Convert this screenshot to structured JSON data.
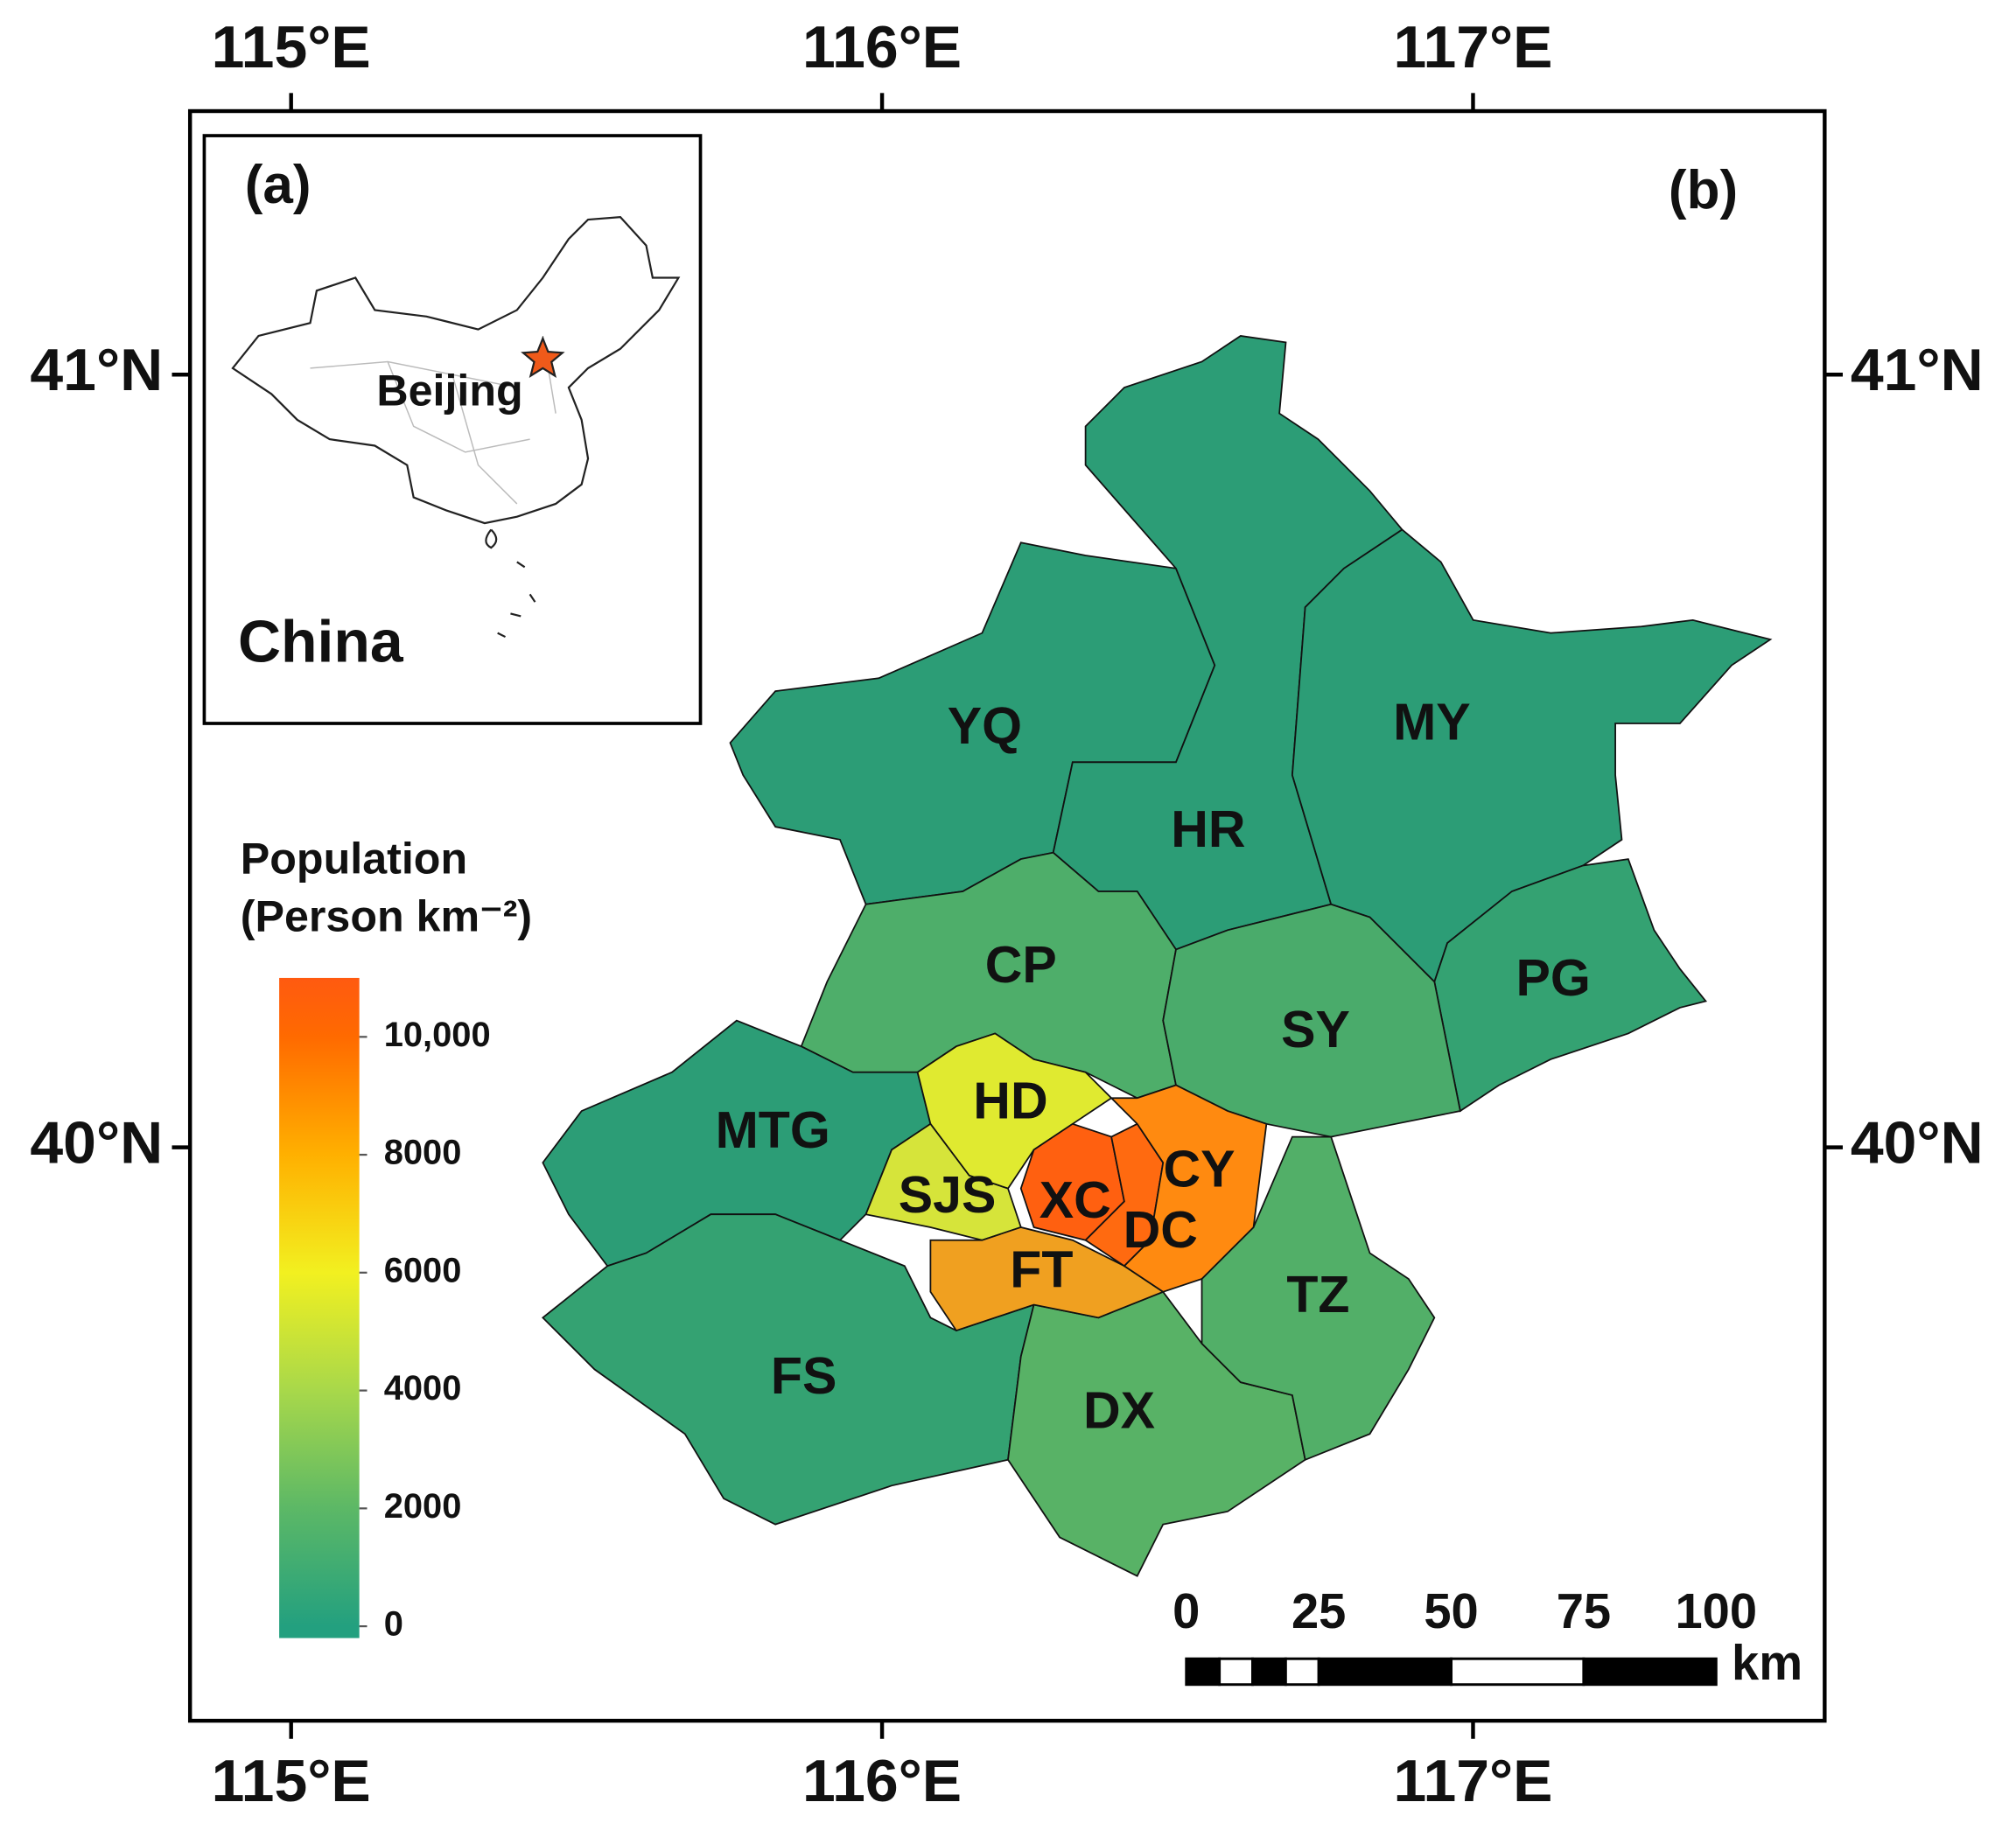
{
  "map": {
    "xlim": [
      114.829,
      117.595
    ],
    "ylim": [
      39.258,
      41.341
    ],
    "xticks": [
      {
        "value": 115,
        "label": "115°E"
      },
      {
        "value": 116,
        "label": "116°E"
      },
      {
        "value": 117,
        "label": "117°E"
      }
    ],
    "yticks": [
      {
        "value": 40,
        "label": "40°N"
      },
      {
        "value": 41,
        "label": "41°N"
      }
    ],
    "panel_b_label": "(b)",
    "inset": {
      "panel_label": "(a)",
      "country": "China",
      "city": "Beijing",
      "star_color": "#f05a1a"
    },
    "legend": {
      "title": "Population",
      "unit": "(Person km⁻²)",
      "lim": [
        -200,
        11000
      ],
      "ticks": [
        0,
        2000,
        4000,
        6000,
        8000,
        {
          "value": 10000,
          "label": "10,000"
        }
      ],
      "colormap": [
        {
          "value": 0,
          "color": "#23a07f"
        },
        {
          "value": 2000,
          "color": "#5cb866"
        },
        {
          "value": 4000,
          "color": "#a8d84a"
        },
        {
          "value": 6000,
          "color": "#f2f020"
        },
        {
          "value": 8000,
          "color": "#ffb000"
        },
        {
          "value": 10000,
          "color": "#ff6a00"
        },
        {
          "value": 11000,
          "color": "#ff5a10"
        }
      ]
    },
    "scale_bar": {
      "lim": [
        0,
        100
      ],
      "ticks": [
        0,
        25,
        50,
        75,
        100
      ],
      "unit": "km"
    },
    "districts": [
      {
        "name": "YQ",
        "color": "#2c9d76"
      },
      {
        "name": "HR",
        "color": "#2c9d76"
      },
      {
        "name": "MY",
        "color": "#2c9d76"
      },
      {
        "name": "PG",
        "color": "#34a272"
      },
      {
        "name": "CP",
        "color": "#4eae6a"
      },
      {
        "name": "SY",
        "color": "#4aab6b"
      },
      {
        "name": "MTG",
        "color": "#2c9d76"
      },
      {
        "name": "FS",
        "color": "#34a272"
      },
      {
        "name": "DX",
        "color": "#58b266"
      },
      {
        "name": "TZ",
        "color": "#52af68"
      },
      {
        "name": "HD",
        "color": "#e0ea30"
      },
      {
        "name": "SJS",
        "color": "#d6e43a"
      },
      {
        "name": "FT",
        "color": "#f0a020"
      },
      {
        "name": "XC",
        "color": "#ff6010"
      },
      {
        "name": "DC",
        "color": "#ff6a10"
      },
      {
        "name": "CY",
        "color": "#ff8a10"
      }
    ]
  }
}
